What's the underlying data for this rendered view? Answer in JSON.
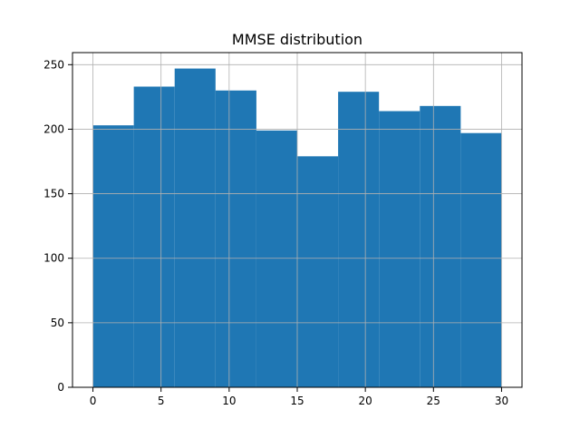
{
  "chart_data": {
    "type": "bar",
    "title": "MMSE distribution",
    "xlabel": "",
    "ylabel": "",
    "bin_edges": [
      0,
      3,
      6,
      9,
      12,
      15,
      18,
      21,
      24,
      27,
      30
    ],
    "values": [
      203,
      233,
      247,
      230,
      199,
      179,
      229,
      214,
      218,
      197
    ],
    "xlim": [
      -1.5,
      31.5
    ],
    "ylim": [
      0,
      259.35
    ],
    "xticks": [
      0,
      5,
      10,
      15,
      20,
      25,
      30
    ],
    "yticks": [
      0,
      50,
      100,
      150,
      200,
      250
    ],
    "grid": true,
    "legend": "none",
    "bar_color": "#1f77b4",
    "grid_color": "#b0b0b0"
  }
}
